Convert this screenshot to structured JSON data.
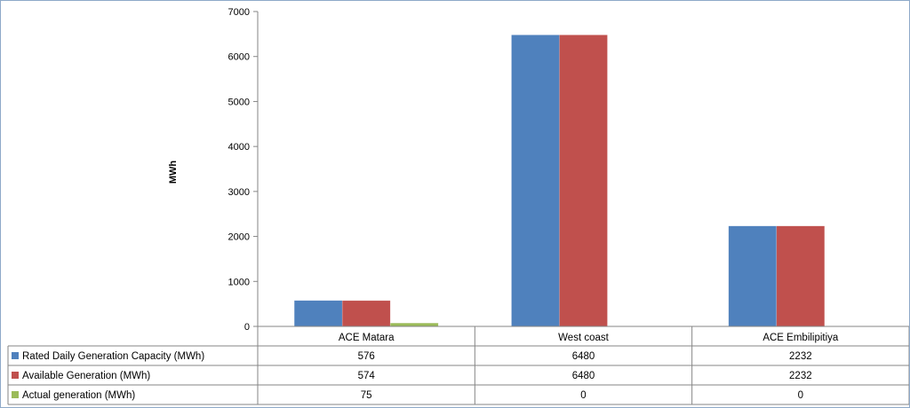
{
  "chart_data": {
    "type": "bar",
    "title": "",
    "xlabel": "",
    "ylabel": "MWh",
    "ylim": [
      0,
      7000
    ],
    "ytick_step": 1000,
    "yticks": [
      "0",
      "1000",
      "2000",
      "3000",
      "4000",
      "5000",
      "6000",
      "7000"
    ],
    "grid": false,
    "legend": "data-table",
    "categories": [
      "ACE Matara",
      "West coast",
      "ACE Embilipitiya"
    ],
    "series": [
      {
        "name": "Rated Daily Generation Capacity (MWh)",
        "color": "#4f81bd",
        "values": [
          576,
          6480,
          2232
        ],
        "value_labels": [
          "576",
          "6480",
          "2232"
        ]
      },
      {
        "name": "Available Generation (MWh)",
        "color": "#c0504d",
        "values": [
          574,
          6480,
          2232
        ],
        "value_labels": [
          "574",
          "6480",
          "2232"
        ]
      },
      {
        "name": "Actual generation (MWh)",
        "color": "#9bbb59",
        "values": [
          75,
          0,
          0
        ],
        "value_labels": [
          "75",
          "0",
          "0"
        ]
      }
    ]
  }
}
